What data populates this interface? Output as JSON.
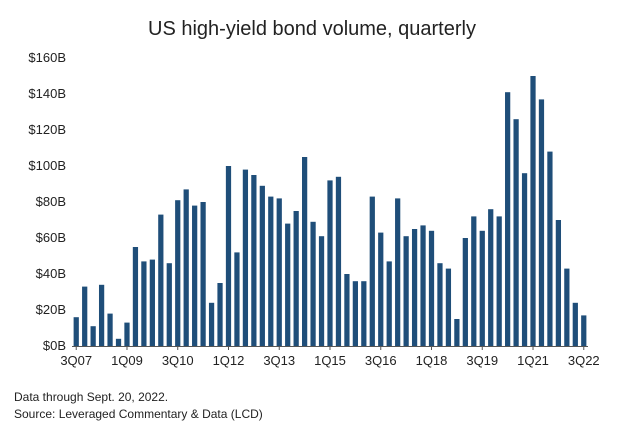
{
  "chart_data": {
    "type": "bar",
    "title": "US high-yield bond volume, quarterly",
    "xlabel": "",
    "ylabel": "",
    "ylim": [
      0,
      160
    ],
    "yticks": [
      0,
      20,
      40,
      60,
      80,
      100,
      120,
      140,
      160
    ],
    "ytick_labels": [
      "$0B",
      "$20B",
      "$40B",
      "$60B",
      "$80B",
      "$100B",
      "$120B",
      "$140B",
      "$160B"
    ],
    "grid": false,
    "bar_color": "#1f4e79",
    "categories": [
      "3Q07",
      "4Q07",
      "1Q08",
      "2Q08",
      "3Q08",
      "4Q08",
      "1Q09",
      "2Q09",
      "3Q09",
      "4Q09",
      "1Q10",
      "2Q10",
      "3Q10",
      "4Q10",
      "1Q11",
      "2Q11",
      "3Q11",
      "4Q11",
      "1Q12",
      "2Q12",
      "3Q12",
      "4Q12",
      "1Q13",
      "2Q13",
      "3Q13",
      "4Q13",
      "1Q14",
      "2Q14",
      "3Q14",
      "4Q14",
      "1Q15",
      "2Q15",
      "3Q15",
      "4Q15",
      "1Q16",
      "2Q16",
      "3Q16",
      "4Q16",
      "1Q17",
      "2Q17",
      "3Q17",
      "4Q17",
      "1Q18",
      "2Q18",
      "3Q18",
      "4Q18",
      "1Q19",
      "2Q19",
      "3Q19",
      "4Q19",
      "1Q20",
      "2Q20",
      "3Q20",
      "4Q20",
      "1Q21",
      "2Q21",
      "3Q21",
      "4Q21",
      "1Q22",
      "2Q22",
      "3Q22"
    ],
    "values": [
      16,
      33,
      11,
      34,
      18,
      4,
      13,
      55,
      47,
      48,
      73,
      46,
      81,
      87,
      78,
      80,
      24,
      35,
      100,
      52,
      98,
      95,
      89,
      83,
      82,
      68,
      75,
      105,
      69,
      61,
      92,
      94,
      40,
      36,
      36,
      83,
      63,
      47,
      82,
      61,
      65,
      67,
      64,
      46,
      43,
      15,
      60,
      72,
      64,
      76,
      72,
      141,
      126,
      96,
      150,
      137,
      108,
      70,
      43,
      24,
      17
    ],
    "x_tick_labels": [
      {
        "index": 0,
        "label": "3Q07"
      },
      {
        "index": 6,
        "label": "1Q09"
      },
      {
        "index": 12,
        "label": "3Q10"
      },
      {
        "index": 18,
        "label": "1Q12"
      },
      {
        "index": 24,
        "label": "3Q13"
      },
      {
        "index": 30,
        "label": "1Q15"
      },
      {
        "index": 36,
        "label": "3Q16"
      },
      {
        "index": 42,
        "label": "1Q18"
      },
      {
        "index": 48,
        "label": "3Q19"
      },
      {
        "index": 54,
        "label": "1Q21"
      },
      {
        "index": 60,
        "label": "3Q22"
      }
    ]
  },
  "footnotes": {
    "line1": "Data through Sept. 20, 2022.",
    "line2": "Source: Leveraged Commentary & Data (LCD)"
  }
}
